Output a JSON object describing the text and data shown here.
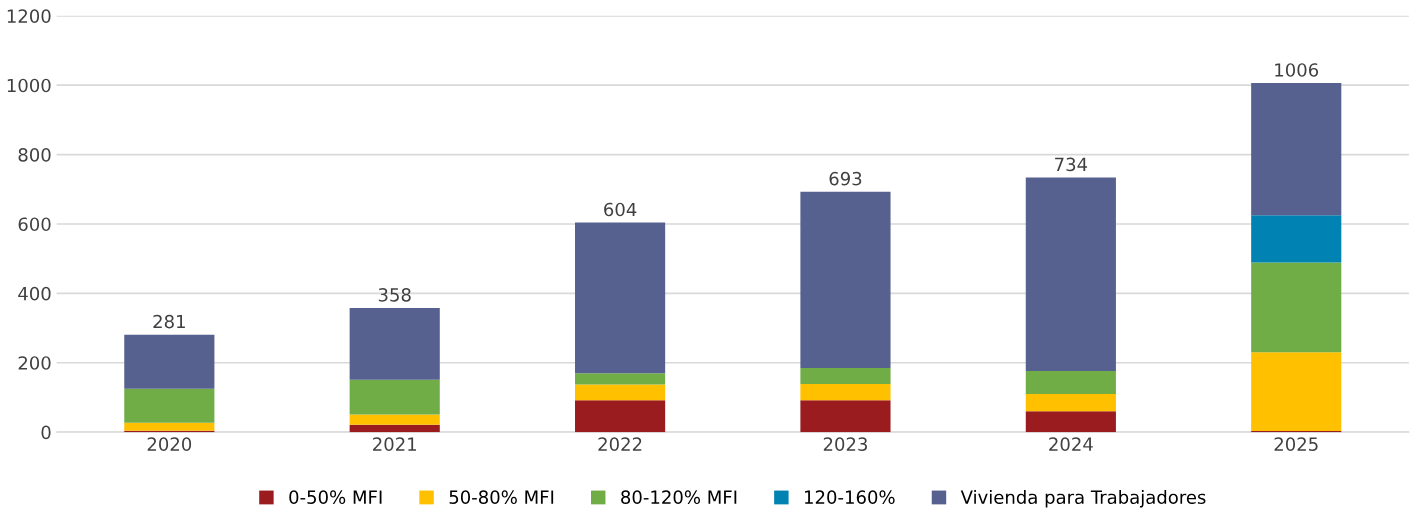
{
  "chart_data": {
    "type": "bar",
    "stacked": true,
    "categories": [
      "2020",
      "2021",
      "2022",
      "2023",
      "2024",
      "2025"
    ],
    "series": [
      {
        "name": "0-50% MFI",
        "color": "#9b1c1f",
        "values": [
          4,
          21,
          92,
          92,
          60,
          3
        ]
      },
      {
        "name": "50-80% MFI",
        "color": "#ffc000",
        "values": [
          23,
          30,
          45,
          47,
          50,
          227
        ]
      },
      {
        "name": "80-120% MFI",
        "color": "#70ad47",
        "values": [
          98,
          100,
          33,
          46,
          66,
          259
        ]
      },
      {
        "name": "120-160%",
        "color": "#0083b3",
        "values": [
          0,
          0,
          0,
          0,
          0,
          136
        ]
      },
      {
        "name": "Vivienda para Trabajadores",
        "color": "#56618f",
        "values": [
          156,
          207,
          434,
          508,
          558,
          381
        ]
      }
    ],
    "totals": [
      "281",
      "358",
      "604",
      "693",
      "734",
      "1006"
    ],
    "ylim": [
      0,
      1200
    ],
    "yticks": [
      0,
      200,
      400,
      600,
      800,
      1000,
      1200
    ],
    "grid": "y",
    "legend": "bottom"
  }
}
